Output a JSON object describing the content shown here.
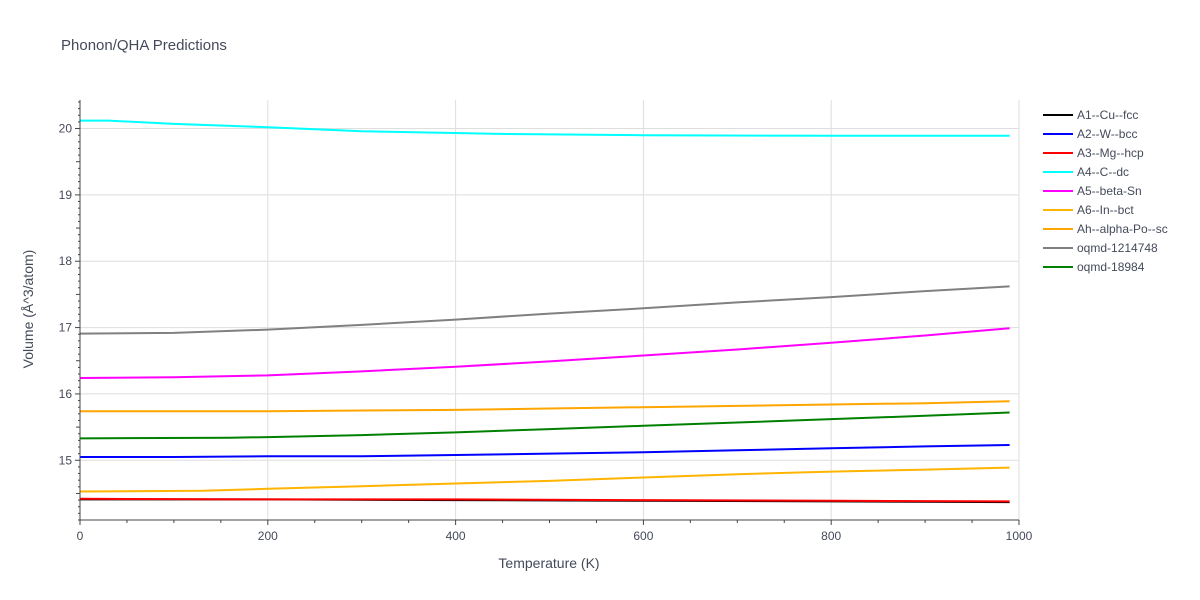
{
  "chart_data": {
    "type": "line",
    "title": "Phonon/QHA Predictions",
    "xlabel": "Temperature (K)",
    "ylabel": "Volume (Å^3/atom)",
    "xlim": [
      0,
      1000
    ],
    "ylim": [
      14.1,
      20.43
    ],
    "xticks": [
      0,
      200,
      400,
      600,
      800,
      1000
    ],
    "yticks": [
      15,
      16,
      17,
      18,
      19,
      20
    ],
    "grid": true,
    "legend_position": "right",
    "series": [
      {
        "name": "A1--Cu--fcc",
        "color": "#000000",
        "x": [
          0,
          200,
          400,
          600,
          800,
          990
        ],
        "y": [
          14.41,
          14.41,
          14.4,
          14.39,
          14.38,
          14.37
        ]
      },
      {
        "name": "A2--W--bcc",
        "color": "#0000ff",
        "x": [
          0,
          100,
          200,
          300,
          400,
          500,
          600,
          700,
          800,
          900,
          990
        ],
        "y": [
          15.05,
          15.05,
          15.06,
          15.06,
          15.08,
          15.1,
          15.12,
          15.15,
          15.18,
          15.21,
          15.23
        ]
      },
      {
        "name": "A3--Mg--hcp",
        "color": "#ff0000",
        "x": [
          0,
          200,
          400,
          600,
          800,
          990
        ],
        "y": [
          14.42,
          14.41,
          14.41,
          14.4,
          14.39,
          14.38
        ]
      },
      {
        "name": "A4--C--dc",
        "color": "#00ffff",
        "x": [
          0,
          30,
          100,
          200,
          300,
          440,
          600,
          800,
          990
        ],
        "y": [
          20.12,
          20.12,
          20.07,
          20.02,
          19.96,
          19.92,
          19.9,
          19.89,
          19.89
        ]
      },
      {
        "name": "A5--beta-Sn",
        "color": "#ff00ff",
        "x": [
          0,
          100,
          200,
          300,
          400,
          500,
          600,
          700,
          800,
          900,
          990
        ],
        "y": [
          16.24,
          16.25,
          16.28,
          16.34,
          16.41,
          16.49,
          16.58,
          16.67,
          16.77,
          16.88,
          16.99
        ]
      },
      {
        "name": "A6--In--bct",
        "color": "#ffb400",
        "x": [
          0,
          130,
          200,
          300,
          400,
          500,
          600,
          700,
          800,
          900,
          990
        ],
        "y": [
          14.53,
          14.54,
          14.57,
          14.61,
          14.65,
          14.69,
          14.74,
          14.79,
          14.83,
          14.86,
          14.89
        ]
      },
      {
        "name": "Ah--alpha-Po--sc",
        "color": "#ffa500",
        "x": [
          0,
          100,
          200,
          300,
          400,
          500,
          600,
          700,
          800,
          900,
          990
        ],
        "y": [
          15.74,
          15.74,
          15.74,
          15.75,
          15.76,
          15.78,
          15.8,
          15.82,
          15.84,
          15.86,
          15.89
        ]
      },
      {
        "name": "oqmd-1214748",
        "color": "#808080",
        "x": [
          0,
          100,
          200,
          300,
          400,
          500,
          600,
          700,
          800,
          900,
          990
        ],
        "y": [
          16.91,
          16.92,
          16.97,
          17.04,
          17.12,
          17.21,
          17.29,
          17.38,
          17.46,
          17.55,
          17.62
        ]
      },
      {
        "name": "oqmd-18984",
        "color": "#008000",
        "x": [
          0,
          160,
          200,
          300,
          400,
          500,
          600,
          700,
          800,
          900,
          990
        ],
        "y": [
          15.33,
          15.34,
          15.35,
          15.38,
          15.42,
          15.47,
          15.52,
          15.57,
          15.62,
          15.67,
          15.72
        ]
      }
    ]
  }
}
